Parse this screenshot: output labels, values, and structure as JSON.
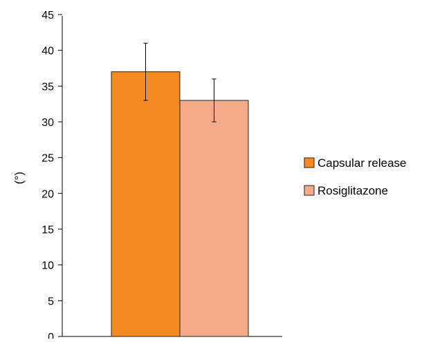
{
  "chart_data": {
    "type": "bar",
    "title": "",
    "xlabel": "",
    "ylabel": "(°)",
    "ylim": [
      0,
      45
    ],
    "yticks": [
      0,
      5,
      10,
      15,
      20,
      25,
      30,
      35,
      40,
      45
    ],
    "grid": false,
    "legend_position": "right",
    "series": [
      {
        "name": "Capsular release",
        "value": 37,
        "error_low": 33,
        "error_high": 41,
        "color": "#f58a22"
      },
      {
        "name": "Rosiglitazone",
        "value": 33,
        "error_low": 30,
        "error_high": 36,
        "color": "#f5ab87"
      }
    ]
  }
}
